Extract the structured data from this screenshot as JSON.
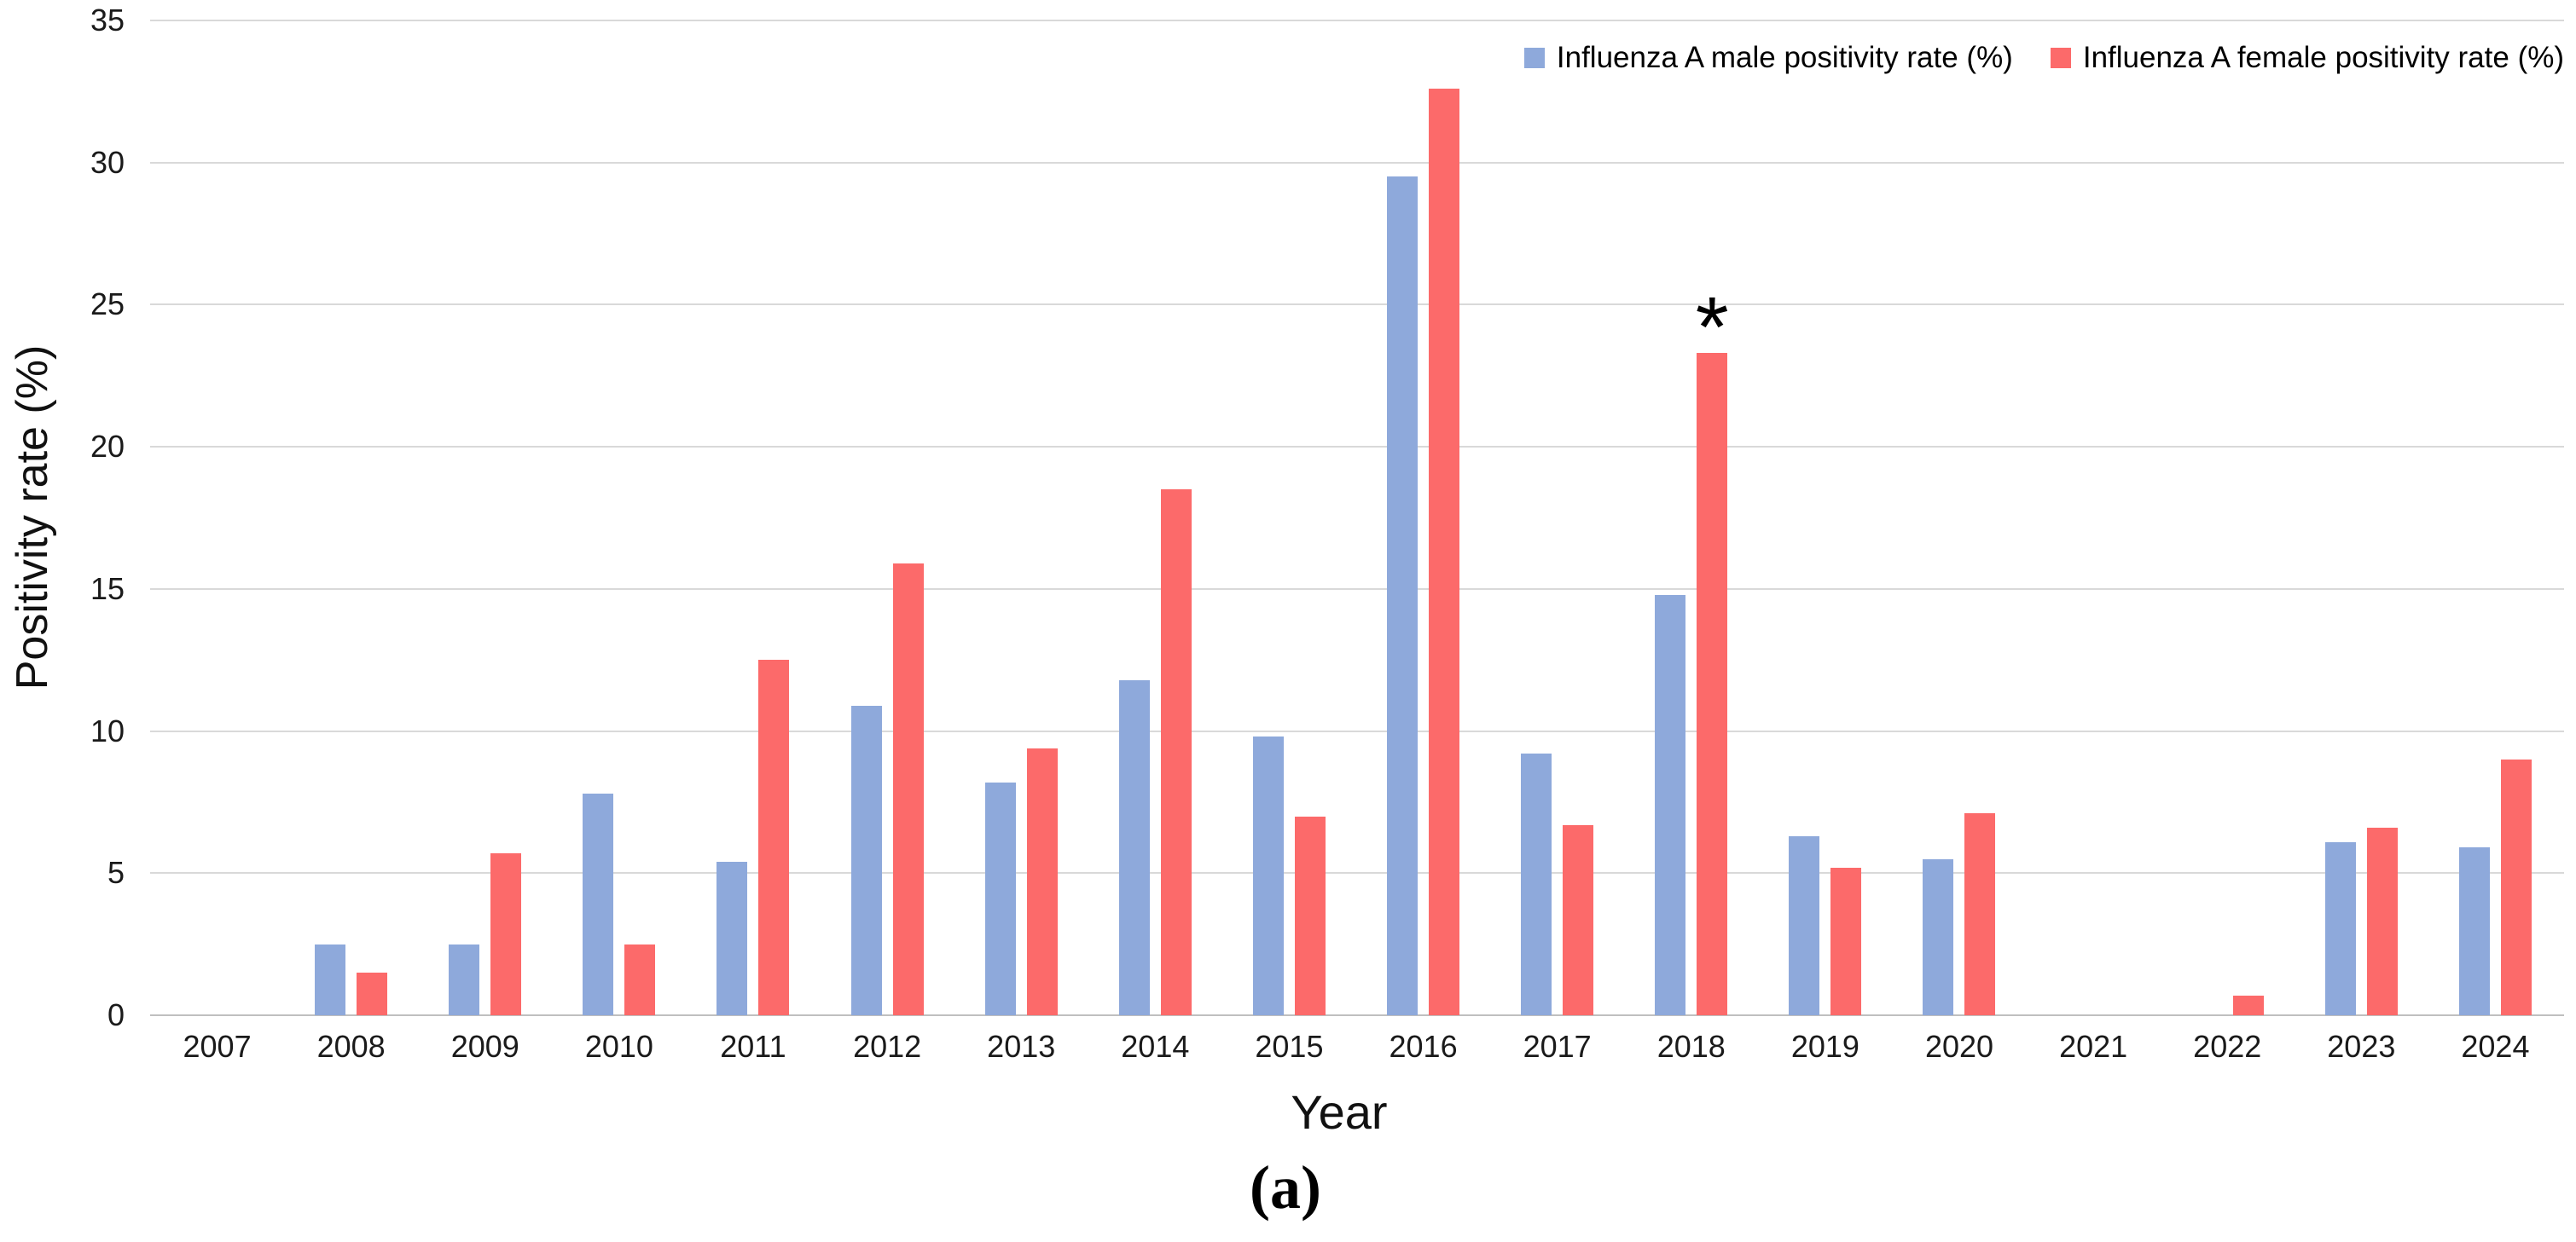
{
  "chart_data": {
    "type": "bar",
    "title": "",
    "categories": [
      "2007",
      "2008",
      "2009",
      "2010",
      "2011",
      "2012",
      "2013",
      "2014",
      "2015",
      "2016",
      "2017",
      "2018",
      "2019",
      "2020",
      "2021",
      "2022",
      "2023",
      "2024"
    ],
    "series": [
      {
        "name": "Influenza A male positivity rate (%)",
        "color": "#8EA9DB",
        "values": [
          0,
          2.5,
          2.5,
          7.8,
          5.4,
          10.9,
          8.2,
          11.8,
          9.8,
          29.5,
          9.2,
          14.8,
          6.3,
          5.5,
          0,
          0,
          6.1,
          5.9
        ]
      },
      {
        "name": "Influenza A female positivity rate (%)",
        "color": "#FC6A6A",
        "values": [
          0,
          1.5,
          5.7,
          2.5,
          12.5,
          15.9,
          9.4,
          18.5,
          7.0,
          32.6,
          6.7,
          23.3,
          5.2,
          7.1,
          0,
          0.7,
          6.6,
          9.0
        ]
      }
    ],
    "xlabel": "Year",
    "ylabel": "Positivity rate (%)",
    "ylim": [
      0,
      35
    ],
    "yticks": [
      0,
      5,
      10,
      15,
      20,
      25,
      30,
      35
    ],
    "grid": true,
    "legend_position": "top-right",
    "annotation": {
      "text": "*",
      "category": "2018",
      "series": "female"
    },
    "caption": "(a)"
  },
  "colors": {
    "male_bar": "#8EA9DB",
    "female_bar": "#FC6A6A",
    "gridline": "#D9D9D9",
    "axis_line": "#BFBFBF",
    "text": "#1A1A1A"
  }
}
